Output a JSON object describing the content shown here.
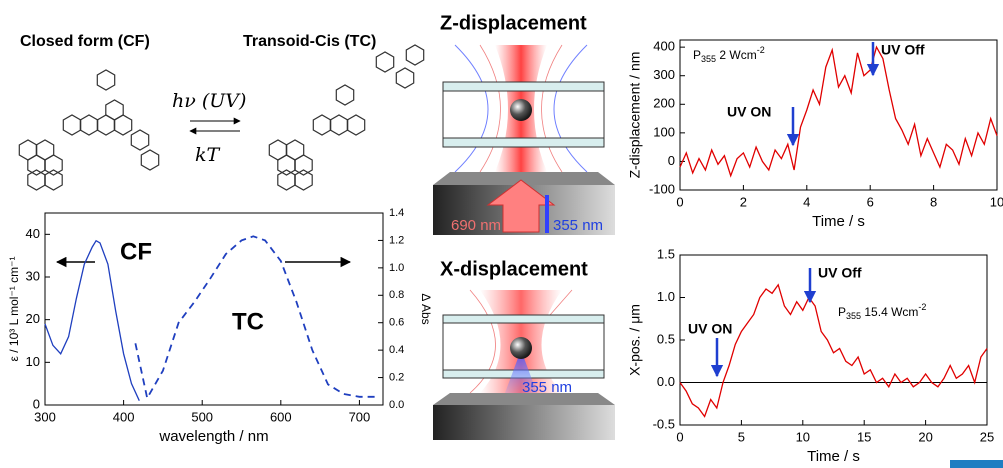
{
  "scheme": {
    "left_title": "Closed form (CF)",
    "right_title": "Transoid-Cis (TC)",
    "forward": "hν (UV)",
    "backward": "kT"
  },
  "diagrams": {
    "z_title": "Z-displacement",
    "x_title": "X-displacement",
    "z_red_label": "690 nm",
    "z_blue_label": "355 nm",
    "x_blue_label": "355 nm"
  },
  "chart_data": [
    {
      "type": "line",
      "xlabel": "wavelength / nm",
      "ylabel": "ε / 10³ L mol⁻¹ cm⁻¹",
      "y2label": "Δ Abs",
      "xlim": [
        300,
        730
      ],
      "xticks": [
        300,
        400,
        500,
        600,
        700
      ],
      "ylim": [
        0,
        45
      ],
      "yticks": [
        0,
        10,
        20,
        30,
        40
      ],
      "y2lim": [
        0,
        1.4
      ],
      "y2ticks": [
        {
          "value": 0,
          "label": "0.0"
        },
        0.2,
        0.4,
        0.6,
        0.8,
        {
          "value": 1,
          "label": "1.0"
        },
        1.2,
        1.4
      ],
      "annotations": [
        "CF",
        "TC"
      ],
      "series": [
        {
          "color": "#1f3fbf",
          "dash": false,
          "x": [
            300,
            310,
            320,
            330,
            340,
            350,
            360,
            365,
            370,
            380,
            390,
            400,
            410,
            420
          ],
          "values": [
            19,
            14,
            12,
            16,
            25,
            33,
            37,
            38.5,
            38,
            33,
            22,
            12,
            5,
            1
          ]
        },
        {
          "color": "#1f3fbf",
          "dash": true,
          "axis": "y2",
          "x": [
            415,
            430,
            450,
            470,
            490,
            510,
            530,
            550,
            565,
            580,
            600,
            620,
            640,
            660,
            680,
            700,
            725
          ],
          "values": [
            0.45,
            0.05,
            0.25,
            0.6,
            0.75,
            0.92,
            1.1,
            1.2,
            1.23,
            1.2,
            1.05,
            0.75,
            0.4,
            0.15,
            0.08,
            0.06,
            0.06
          ]
        }
      ]
    },
    {
      "type": "line",
      "xlabel": "Time / s",
      "ylabel": "Z-displacement / nm",
      "xlim": [
        0,
        10
      ],
      "xticks": [
        0,
        2,
        4,
        6,
        8,
        10
      ],
      "ylim": [
        -100,
        425
      ],
      "yticks": [
        -100,
        0,
        100,
        200,
        300,
        400
      ],
      "power": {
        "symbol": "P",
        "subscript": "355",
        "text": " 2 Wcm",
        "superscript": "-2"
      },
      "annotations": [
        "UV ON",
        "UV Off"
      ],
      "series": [
        {
          "color": "#e00000",
          "dash": false,
          "x": [
            0,
            0.2,
            0.4,
            0.6,
            0.8,
            1,
            1.2,
            1.4,
            1.6,
            1.8,
            2,
            2.2,
            2.4,
            2.6,
            2.8,
            3,
            3.2,
            3.4,
            3.6,
            3.8,
            4,
            4.2,
            4.4,
            4.6,
            4.8,
            5,
            5.2,
            5.4,
            5.6,
            5.8,
            6,
            6.2,
            6.4,
            6.6,
            6.8,
            7,
            7.2,
            7.4,
            7.6,
            7.8,
            8,
            8.2,
            8.4,
            8.6,
            8.8,
            9,
            9.2,
            9.4,
            9.6,
            9.8,
            10
          ],
          "values": [
            -20,
            30,
            -40,
            10,
            -30,
            40,
            -10,
            20,
            -50,
            10,
            30,
            -20,
            50,
            0,
            -30,
            40,
            10,
            60,
            -30,
            120,
            180,
            250,
            200,
            330,
            390,
            260,
            300,
            240,
            380,
            300,
            320,
            400,
            360,
            250,
            150,
            110,
            60,
            130,
            20,
            80,
            30,
            -20,
            60,
            40,
            -10,
            80,
            20,
            100,
            60,
            150,
            90
          ]
        }
      ]
    },
    {
      "type": "line",
      "xlabel": "Time / s",
      "ylabel": "X-pos. / μm",
      "zero_line": true,
      "xlim": [
        0,
        25
      ],
      "xticks": [
        0,
        5,
        10,
        15,
        20,
        25
      ],
      "ylim": [
        -0.5,
        1.5
      ],
      "yticks": [
        -0.5,
        {
          "value": 0,
          "label": "0.0"
        },
        0.5,
        {
          "value": 1,
          "label": "1.0"
        },
        1.5
      ],
      "power": {
        "symbol": "P",
        "subscript": "355",
        "text": " 15.4 Wcm",
        "superscript": "-2"
      },
      "annotations": [
        "UV ON",
        "UV Off"
      ],
      "series": [
        {
          "color": "#e00000",
          "dash": false,
          "x": [
            0,
            0.5,
            1,
            1.5,
            2,
            2.5,
            3,
            3.5,
            4,
            4.5,
            5,
            5.5,
            6,
            6.5,
            7,
            7.5,
            8,
            8.5,
            9,
            9.5,
            10,
            10.5,
            11,
            11.5,
            12,
            12.5,
            13,
            13.5,
            14,
            14.5,
            15,
            15.5,
            16,
            16.5,
            17,
            17.5,
            18,
            18.5,
            19,
            19.5,
            20,
            20.5,
            21,
            21.5,
            22,
            22.5,
            23,
            23.5,
            24,
            24.5,
            25
          ],
          "values": [
            0,
            -0.1,
            -0.25,
            -0.3,
            -0.4,
            -0.2,
            -0.3,
            0,
            0.2,
            0.45,
            0.6,
            0.7,
            0.8,
            1,
            1.1,
            1.05,
            1.15,
            0.9,
            0.8,
            0.95,
            0.85,
            1,
            0.9,
            0.6,
            0.5,
            0.35,
            0.4,
            0.25,
            0.2,
            0.3,
            0.1,
            0.15,
            0,
            0.05,
            -0.05,
            0.1,
            0,
            0.05,
            -0.05,
            0,
            0.1,
            0,
            -0.05,
            0.05,
            0.2,
            0.05,
            0.1,
            0.2,
            0,
            0.3,
            0.4
          ]
        }
      ]
    }
  ]
}
